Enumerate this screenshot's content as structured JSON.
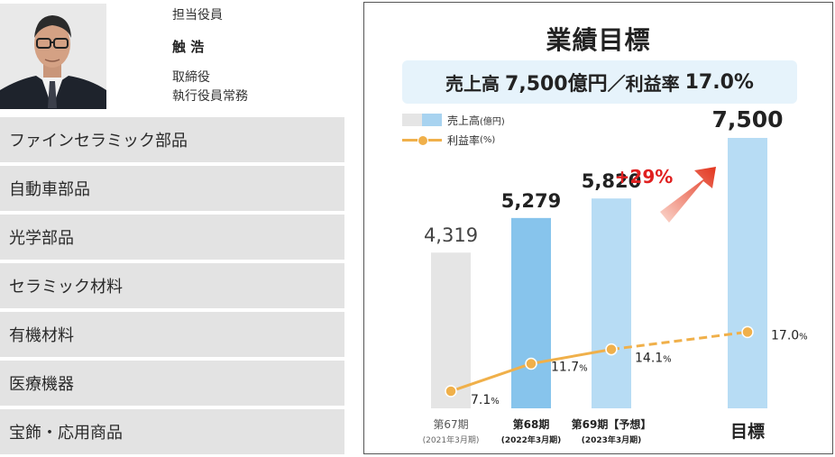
{
  "executive": {
    "role": "担当役員",
    "name": "触 浩",
    "title_line1": "取締役",
    "title_line2": "執行役員常務"
  },
  "segments": [
    "ファインセラミック部品",
    "自動車部品",
    "光学部品",
    "セラミック材料",
    "有機材料",
    "医療機器",
    "宝飾・応用商品"
  ],
  "target": {
    "label": "売上高",
    "sales": "7,500億円",
    "separator": "／",
    "margin_label": "利益率",
    "margin": "17.0%"
  },
  "chart_data": {
    "type": "bar",
    "title": "業績目標",
    "categories": [
      {
        "name": "第67期",
        "sub": "(2021年3月期)"
      },
      {
        "name": "第68期",
        "sub": "(2022年3月期)"
      },
      {
        "name": "第69期【予想】",
        "sub": "(2023年3月期)"
      },
      {
        "name": "目標",
        "sub": ""
      }
    ],
    "series": [
      {
        "name": "売上高",
        "unit": "(億円)",
        "kind": "bar",
        "values": [
          4319,
          5279,
          5820,
          7500
        ],
        "labels": [
          "4,319",
          "5,279",
          "5,820",
          "7,500"
        ]
      },
      {
        "name": "利益率",
        "unit": "(%)",
        "kind": "line",
        "values": [
          7.1,
          11.7,
          14.1,
          17.0
        ],
        "labels": [
          "7.1",
          "11.7",
          "14.1",
          "17.0"
        ]
      }
    ],
    "bar_colors": [
      "#e5e5e5",
      "#87c4ec",
      "#b7dcf4",
      "#b7dcf4"
    ],
    "line_color": "#f0b04a",
    "growth_annotation": "+29%",
    "annotation_color": "#e02020",
    "percent_suffix": "%"
  }
}
